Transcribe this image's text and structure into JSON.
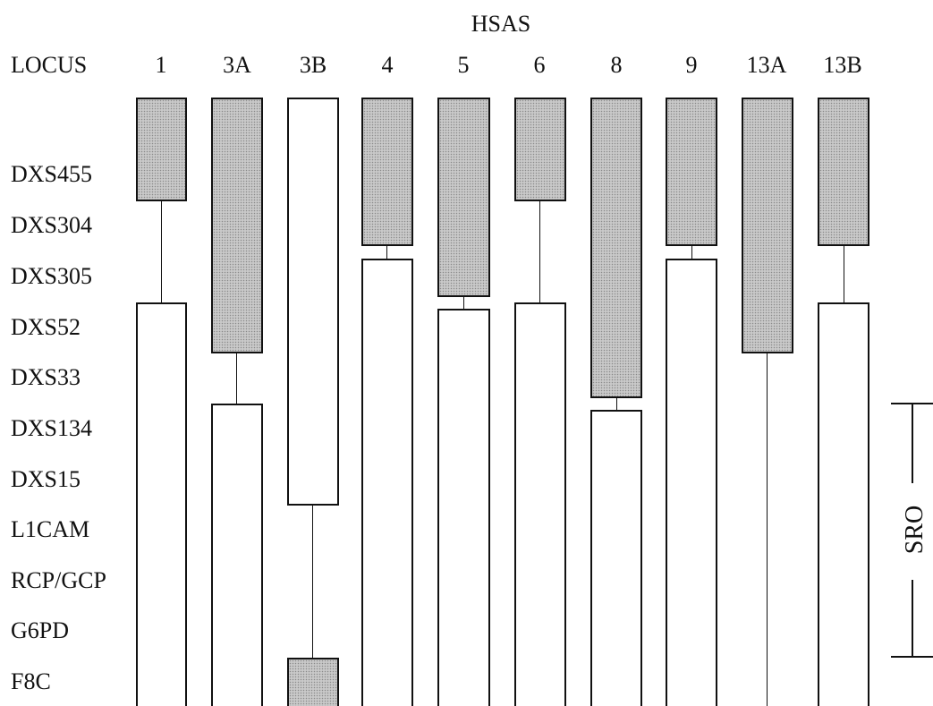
{
  "header": {
    "title": "HSAS",
    "locus_label": "LOCUS"
  },
  "columns": [
    "1",
    "3A",
    "3B",
    "4",
    "5",
    "6",
    "8",
    "9",
    "13A",
    "13B"
  ],
  "loci": [
    "DXS455",
    "DXS304",
    "DXS305",
    "DXS52",
    "DXS33",
    "DXS134",
    "DXS15",
    "L1CAM",
    "RCP/GCP",
    "G6PD",
    "F8C"
  ],
  "sro": {
    "label": "SRO"
  },
  "colors": {
    "line": "#111111",
    "shaded": "#c9c9c9",
    "open": "#ffffff"
  }
}
